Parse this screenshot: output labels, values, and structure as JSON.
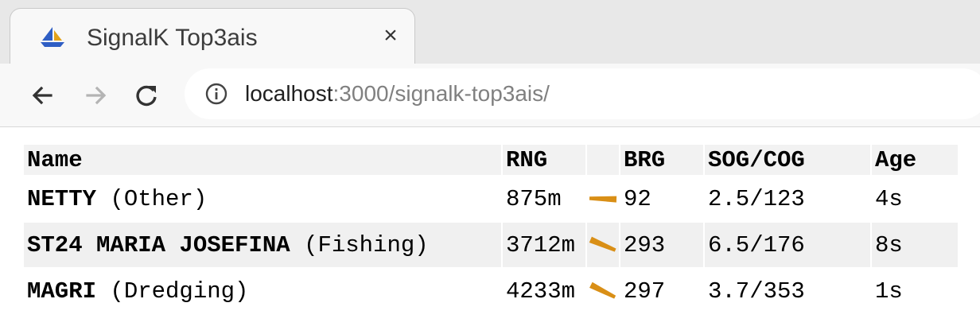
{
  "browser": {
    "tab": {
      "title": "SignalK Top3ais",
      "close_glyph": "×",
      "favicon": "sailboat-icon"
    },
    "toolbar": {
      "back_icon": "back-arrow-icon",
      "forward_icon": "forward-arrow-icon",
      "reload_icon": "reload-icon",
      "info_icon": "info-icon",
      "url_host": "localhost",
      "url_rest": ":3000/signalk-top3ais/"
    }
  },
  "table": {
    "headers": {
      "name": "Name",
      "rng": "RNG",
      "icon": "",
      "brg": "BRG",
      "sogcog": "SOG/COG",
      "age": "Age"
    },
    "rows": [
      {
        "name": "NETTY",
        "type": "(Other)",
        "rng": "875m",
        "brg": "92",
        "sogcog": "2.5/123",
        "age": "4s"
      },
      {
        "name": "ST24 MARIA JOSEFINA",
        "type": "(Fishing)",
        "rng": "3712m",
        "brg": "293",
        "sogcog": "6.5/176",
        "age": "8s"
      },
      {
        "name": "MAGRI",
        "type": "(Dredging)",
        "rng": "4233m",
        "brg": "297",
        "sogcog": "3.7/353",
        "age": "1s"
      }
    ],
    "arrow_color": "#d98f16"
  }
}
